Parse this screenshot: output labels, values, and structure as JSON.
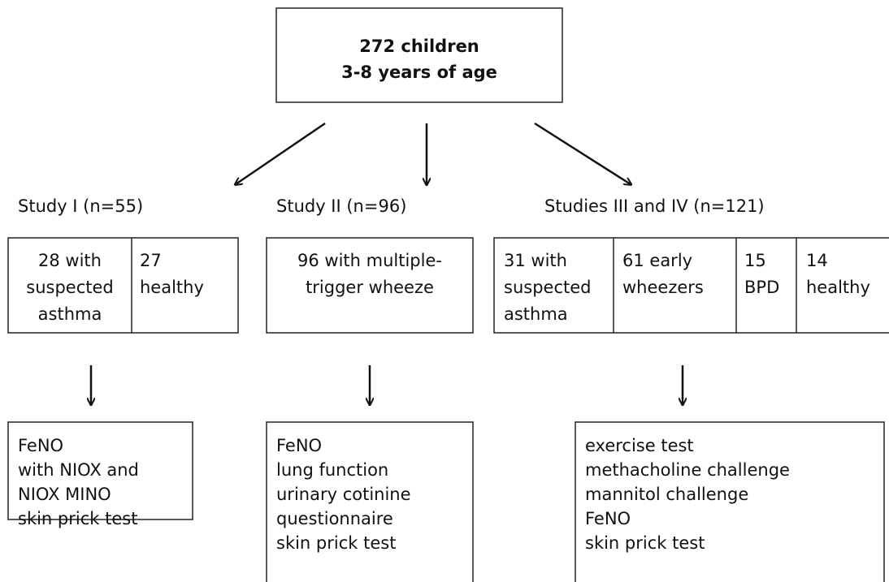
{
  "top": {
    "lines": [
      "272 children",
      "3-8 years of age"
    ]
  },
  "studies": [
    {
      "label": "Study I (n=55)",
      "groups": [
        {
          "lines": [
            "28 with",
            "suspected",
            "asthma"
          ]
        },
        {
          "lines": [
            "27",
            "healthy"
          ]
        }
      ],
      "measures": [
        "FeNO",
        "with NIOX and",
        "NIOX MINO",
        "skin prick test"
      ]
    },
    {
      "label": "Study II (n=96)",
      "groups": [
        {
          "lines": [
            "96 with multiple-",
            "trigger wheeze"
          ]
        }
      ],
      "measures": [
        "FeNO",
        "lung function",
        "urinary cotinine",
        "questionnaire",
        "skin prick test"
      ]
    },
    {
      "label": "Studies III and IV (n=121)",
      "groups": [
        {
          "lines": [
            "31 with",
            "suspected",
            "asthma"
          ]
        },
        {
          "lines": [
            "61 early",
            "wheezers"
          ]
        },
        {
          "lines": [
            "15",
            "BPD"
          ]
        },
        {
          "lines": [
            "14",
            "healthy"
          ]
        }
      ],
      "measures": [
        "exercise test",
        "methacholine challenge",
        "mannitol challenge",
        "FeNO",
        "skin prick test"
      ]
    }
  ]
}
